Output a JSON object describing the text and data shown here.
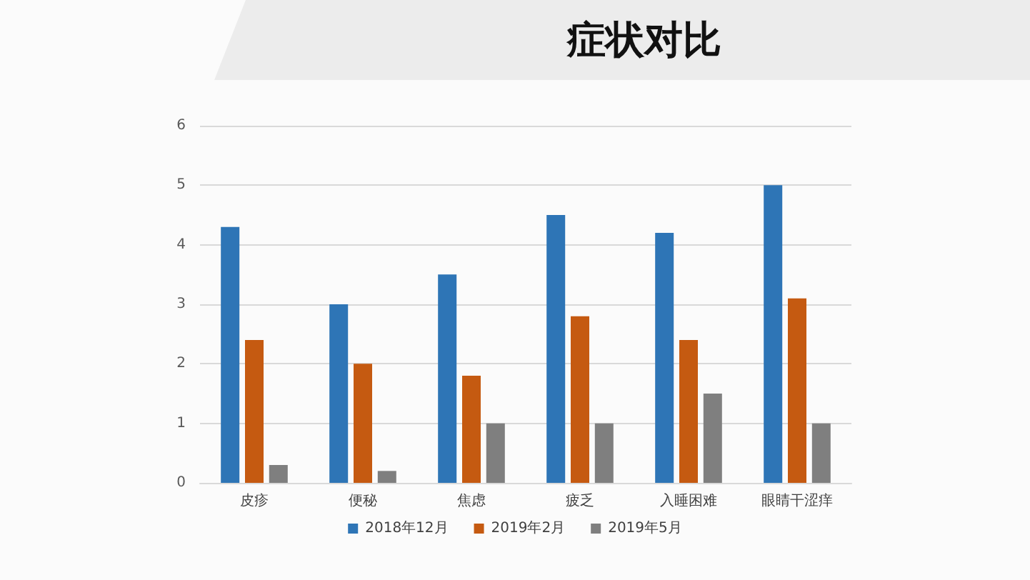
{
  "chart_data": {
    "type": "bar",
    "title": "症状对比",
    "categories": [
      "皮疹",
      "便秘",
      "焦虑",
      "疲乏",
      "入睡困难",
      "眼睛干涩痒"
    ],
    "series": [
      {
        "name": "2018年12月",
        "color": "#2e75b6",
        "values": [
          4.3,
          3.0,
          3.5,
          4.5,
          4.2,
          5.0
        ]
      },
      {
        "name": "2019年2月",
        "color": "#c55a11",
        "values": [
          2.4,
          2.0,
          1.8,
          2.8,
          2.4,
          3.1
        ]
      },
      {
        "name": "2019年5月",
        "color": "#7f7f7f",
        "values": [
          0.3,
          0.2,
          1.0,
          1.0,
          1.5,
          1.0
        ]
      }
    ],
    "ylim": [
      0,
      6
    ],
    "yticks": [
      0,
      1,
      2,
      3,
      4,
      5,
      6
    ],
    "grid": "y",
    "legend": "bottom"
  }
}
